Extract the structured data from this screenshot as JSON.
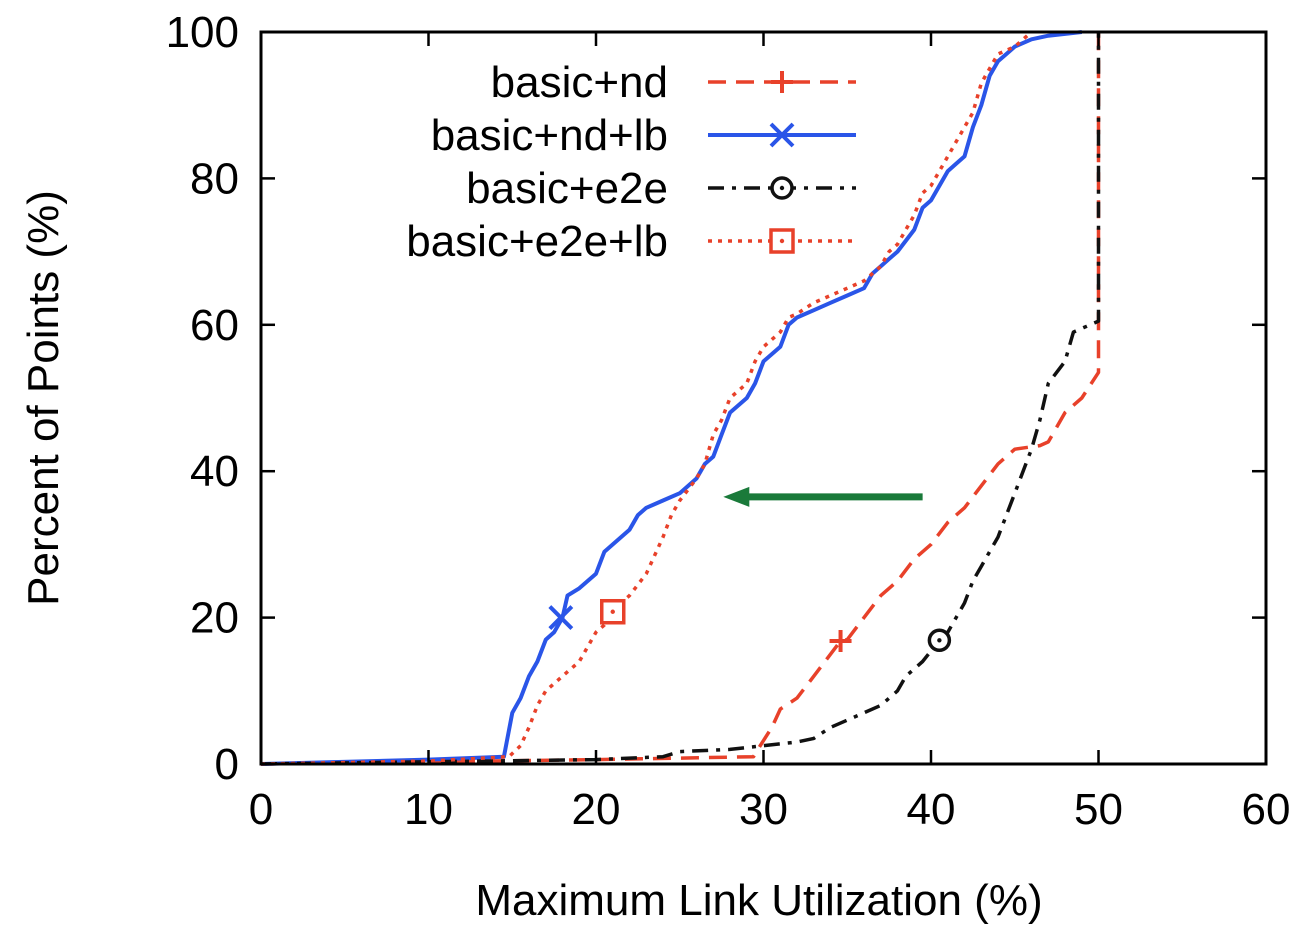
{
  "chart_data": {
    "type": "line",
    "xlabel": "Maximum Link Utilization (%)",
    "ylabel": "Percent of Points (%)",
    "xlim": [
      0,
      60
    ],
    "ylim": [
      0,
      100
    ],
    "xticks": [
      0,
      10,
      20,
      30,
      40,
      50,
      60
    ],
    "yticks": [
      0,
      20,
      40,
      60,
      80,
      100
    ],
    "xtick_labels": [
      "0",
      "10",
      "20",
      "30",
      "40",
      "50",
      "60"
    ],
    "ytick_labels": [
      "0",
      "20",
      "40",
      "60",
      "80",
      "100"
    ],
    "grid": false,
    "legend_position": "top-left",
    "annotation": {
      "type": "arrow",
      "color": "#1a7a3a",
      "from": [
        39.5,
        36.5
      ],
      "to": [
        27.6,
        36.5
      ]
    },
    "series": [
      {
        "name": "basic+nd",
        "color": "#e8412a",
        "dash": "dashed",
        "marker": "plus",
        "marker_at": [
          34.6,
          16.8
        ],
        "points": [
          [
            0,
            0
          ],
          [
            10,
            0.3
          ],
          [
            20,
            0.6
          ],
          [
            25,
            0.8
          ],
          [
            29.4,
            1
          ],
          [
            29.8,
            2.5
          ],
          [
            30.5,
            5
          ],
          [
            31,
            7.5
          ],
          [
            32,
            9
          ],
          [
            33,
            12
          ],
          [
            34.6,
            16.8
          ],
          [
            35,
            17
          ],
          [
            36,
            20
          ],
          [
            37,
            23
          ],
          [
            38,
            25
          ],
          [
            39,
            28
          ],
          [
            40,
            30
          ],
          [
            41,
            33
          ],
          [
            42,
            35
          ],
          [
            43,
            38
          ],
          [
            44,
            41
          ],
          [
            45,
            43
          ],
          [
            46.5,
            43.5
          ],
          [
            47,
            44
          ],
          [
            48,
            48
          ],
          [
            49,
            50
          ],
          [
            50,
            53.5
          ],
          [
            50,
            100
          ]
        ]
      },
      {
        "name": "basic+nd+lb",
        "color": "#2a55e8",
        "dash": "solid",
        "marker": "x",
        "marker_at": [
          17.9,
          20
        ],
        "points": [
          [
            0,
            0
          ],
          [
            10,
            0.6
          ],
          [
            14.5,
            1
          ],
          [
            15,
            7
          ],
          [
            15.5,
            9
          ],
          [
            16,
            12
          ],
          [
            16.5,
            14
          ],
          [
            17,
            17
          ],
          [
            17.5,
            18
          ],
          [
            18,
            20
          ],
          [
            18.3,
            23
          ],
          [
            19,
            24
          ],
          [
            20,
            26
          ],
          [
            20.5,
            29
          ],
          [
            21,
            30
          ],
          [
            22,
            32
          ],
          [
            22.5,
            34
          ],
          [
            23,
            35
          ],
          [
            24,
            36
          ],
          [
            25,
            37
          ],
          [
            26,
            39
          ],
          [
            26.5,
            41
          ],
          [
            27,
            42
          ],
          [
            27.5,
            45
          ],
          [
            28,
            48
          ],
          [
            29,
            50
          ],
          [
            29.5,
            52
          ],
          [
            30,
            55
          ],
          [
            31,
            57
          ],
          [
            31.5,
            60
          ],
          [
            32,
            61
          ],
          [
            33,
            62
          ],
          [
            34,
            63
          ],
          [
            35,
            64
          ],
          [
            36,
            65
          ],
          [
            36.5,
            67
          ],
          [
            37,
            68
          ],
          [
            37.5,
            69
          ],
          [
            38,
            70
          ],
          [
            39,
            73
          ],
          [
            39.5,
            76
          ],
          [
            40,
            77
          ],
          [
            40.5,
            79
          ],
          [
            41,
            81
          ],
          [
            41.5,
            82
          ],
          [
            42,
            83
          ],
          [
            42.5,
            87
          ],
          [
            43,
            90
          ],
          [
            43.5,
            94
          ],
          [
            44,
            96
          ],
          [
            44.5,
            97
          ],
          [
            45,
            98
          ],
          [
            46,
            99
          ],
          [
            47,
            99.5
          ],
          [
            49,
            100
          ]
        ]
      },
      {
        "name": "basic+e2e",
        "color": "#111111",
        "dash": "dashdot",
        "marker": "circle-dot",
        "marker_at": [
          40.5,
          16.9
        ],
        "points": [
          [
            0,
            0
          ],
          [
            10,
            0.3
          ],
          [
            20,
            0.6
          ],
          [
            24,
            1
          ],
          [
            25,
            1.7
          ],
          [
            28,
            2
          ],
          [
            30,
            2.5
          ],
          [
            32,
            3
          ],
          [
            33,
            3.5
          ],
          [
            34,
            5
          ],
          [
            35,
            6
          ],
          [
            36,
            7
          ],
          [
            37,
            8
          ],
          [
            38,
            10
          ],
          [
            38.5,
            12
          ],
          [
            39,
            13
          ],
          [
            39.5,
            14
          ],
          [
            40.5,
            16.9
          ],
          [
            41,
            18
          ],
          [
            41.5,
            20
          ],
          [
            42,
            22
          ],
          [
            42.5,
            25
          ],
          [
            43,
            27
          ],
          [
            43.5,
            29
          ],
          [
            44,
            31
          ],
          [
            44.5,
            34
          ],
          [
            45,
            37
          ],
          [
            45.5,
            40
          ],
          [
            46,
            43
          ],
          [
            46.5,
            47
          ],
          [
            47,
            52
          ],
          [
            48,
            55
          ],
          [
            48.5,
            59
          ],
          [
            50,
            60.5
          ],
          [
            50,
            100
          ]
        ]
      },
      {
        "name": "basic+e2e+lb",
        "color": "#e8412a",
        "dash": "dotted",
        "marker": "square-dot",
        "marker_at": [
          21,
          20.8
        ],
        "points": [
          [
            0,
            0
          ],
          [
            10,
            0.4
          ],
          [
            14.8,
            1
          ],
          [
            15.5,
            2.5
          ],
          [
            16,
            5
          ],
          [
            16.5,
            8
          ],
          [
            17,
            10
          ],
          [
            18,
            12
          ],
          [
            19,
            14
          ],
          [
            19.5,
            16
          ],
          [
            20,
            18
          ],
          [
            20.5,
            19
          ],
          [
            21,
            20.8
          ],
          [
            21.5,
            22
          ],
          [
            22,
            23
          ],
          [
            23,
            26
          ],
          [
            24,
            31
          ],
          [
            24.5,
            34
          ],
          [
            25,
            36
          ],
          [
            26,
            39
          ],
          [
            26.5,
            41
          ],
          [
            27,
            45
          ],
          [
            27.5,
            47
          ],
          [
            28,
            50
          ],
          [
            29,
            52
          ],
          [
            29.5,
            55
          ],
          [
            30,
            57
          ],
          [
            31,
            59
          ],
          [
            31.5,
            61
          ],
          [
            32,
            61.5
          ],
          [
            33,
            63
          ],
          [
            34,
            64
          ],
          [
            35,
            65
          ],
          [
            36,
            66
          ],
          [
            36.5,
            67
          ],
          [
            37,
            68
          ],
          [
            37.5,
            70
          ],
          [
            38,
            71
          ],
          [
            38.5,
            73
          ],
          [
            39,
            75
          ],
          [
            39.5,
            78
          ],
          [
            40,
            79
          ],
          [
            40.5,
            81
          ],
          [
            41,
            83
          ],
          [
            41.5,
            85
          ],
          [
            42,
            87
          ],
          [
            42.5,
            89
          ],
          [
            43,
            93
          ],
          [
            43.5,
            95
          ],
          [
            44,
            97
          ],
          [
            45,
            98
          ],
          [
            46,
            100
          ]
        ]
      }
    ]
  }
}
